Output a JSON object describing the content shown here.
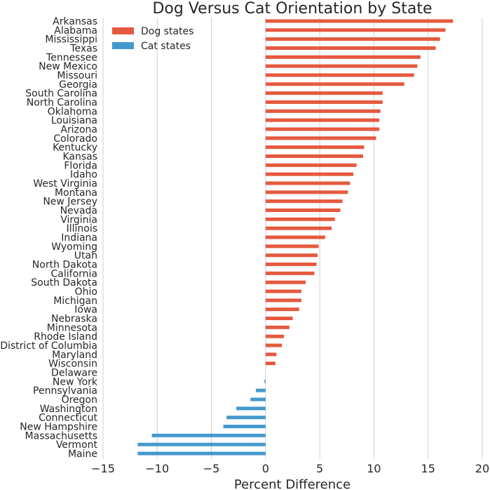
{
  "chart_data": {
    "type": "bar",
    "orientation": "horizontal",
    "title": "Dog Versus Cat Orientation by State",
    "xlabel": "Percent Difference",
    "ylabel": "",
    "xlim": [
      -15,
      20
    ],
    "xticks": [
      "−15",
      "−10",
      "−5",
      "0",
      "5",
      "10",
      "15",
      "20"
    ],
    "grid": true,
    "legend_position": "top-left",
    "series": [
      {
        "name": "Dog states",
        "color": "#e5593f"
      },
      {
        "name": "Cat states",
        "color": "#4499cc"
      }
    ],
    "categories": [
      "Arkansas",
      "Alabama",
      "Mississippi",
      "Texas",
      "Tennessee",
      "New Mexico",
      "Missouri",
      "Georgia",
      "South Carolina",
      "North Carolina",
      "Oklahoma",
      "Louisiana",
      "Arizona",
      "Colorado",
      "Kentucky",
      "Kansas",
      "Florida",
      "Idaho",
      "West Virginia",
      "Montana",
      "New Jersey",
      "Nevada",
      "Virginia",
      "Illinois",
      "Indiana",
      "Wyoming",
      "Utah",
      "North Dakota",
      "California",
      "South Dakota",
      "Ohio",
      "Michigan",
      "Iowa",
      "Nebraska",
      "Minnesota",
      "Rhode Island",
      "District of Columbia",
      "Maryland",
      "Wisconsin",
      "Delaware",
      "New York",
      "Pennsylvania",
      "Oregon",
      "Washington",
      "Connecticut",
      "New Hampshire",
      "Massachusetts",
      "Vermont",
      "Maine"
    ],
    "values": [
      17.3,
      16.6,
      16.1,
      15.7,
      14.3,
      14.0,
      13.7,
      12.8,
      10.8,
      10.8,
      10.6,
      10.5,
      10.5,
      10.2,
      9.1,
      9.0,
      8.4,
      8.1,
      7.8,
      7.6,
      7.1,
      6.9,
      6.4,
      6.1,
      5.5,
      4.9,
      4.8,
      4.7,
      4.5,
      3.7,
      3.3,
      3.3,
      3.1,
      2.5,
      2.2,
      1.7,
      1.5,
      1.0,
      0.9,
      0.0,
      -0.1,
      -0.9,
      -1.4,
      -2.7,
      -3.6,
      -3.9,
      -10.5,
      -11.8,
      -11.8
    ]
  }
}
